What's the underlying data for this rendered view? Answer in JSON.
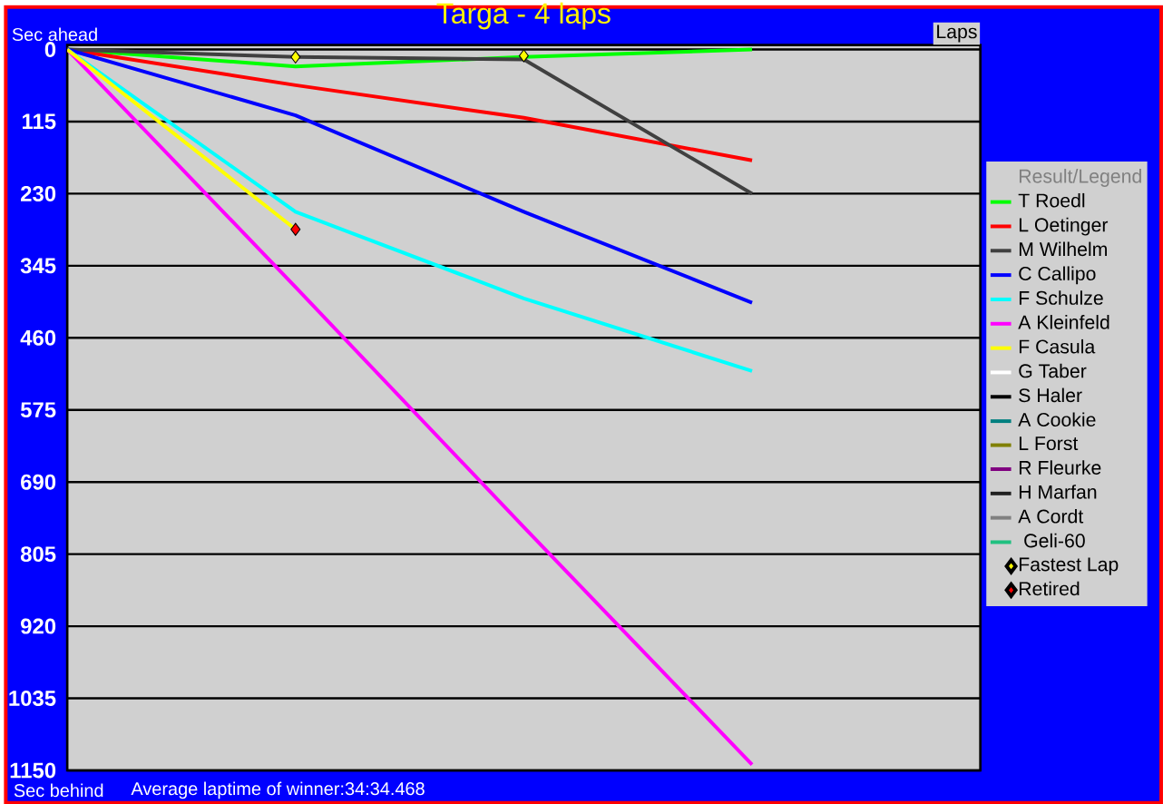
{
  "chart_data": {
    "type": "line",
    "title": "Targa - 4 laps",
    "xlabel": "Laps",
    "legend_title": "Result/Legend",
    "annotations": [
      "Sec ahead",
      "Sec behind",
      "Average laptime of winner:34:34.468"
    ],
    "categories": [
      null,
      null,
      null,
      null,
      null
    ],
    "ylim": [
      1150,
      -7
    ],
    "yticks": [
      0,
      115,
      230,
      345,
      460,
      575,
      690,
      805,
      920,
      1035,
      1150
    ],
    "tick_labels": "y",
    "grid": "y",
    "legend": "right",
    "series": [
      {
        "name": "T Roedl",
        "color": "#00ff00",
        "values": [
          0,
          27,
          12,
          0,
          null
        ]
      },
      {
        "name": "L Oetinger",
        "color": "#ff0000",
        "values": [
          0,
          57,
          109,
          177,
          null
        ]
      },
      {
        "name": "M Wilhelm",
        "color": "#404040",
        "values": [
          0,
          12,
          16,
          230,
          null
        ]
      },
      {
        "name": "C Callipo",
        "color": "#0000ff",
        "values": [
          0,
          105,
          259,
          404,
          null
        ]
      },
      {
        "name": "F Schulze",
        "color": "#00ffff",
        "values": [
          0,
          259,
          397,
          513,
          null
        ]
      },
      {
        "name": "A Kleinfeld",
        "color": "#ff00ff",
        "values": [
          0,
          379,
          762,
          1141,
          null
        ]
      },
      {
        "name": "F Casula",
        "color": "#ffff00",
        "values": [
          0,
          287,
          null,
          null,
          null
        ]
      },
      {
        "name": "G Taber",
        "color": "#ffffff",
        "values": [
          null,
          null,
          null,
          null,
          null
        ]
      },
      {
        "name": "S Haler",
        "color": "#000000",
        "values": [
          null,
          null,
          null,
          null,
          null
        ]
      },
      {
        "name": "A Cookie",
        "color": "#008080",
        "values": [
          null,
          null,
          null,
          null,
          null
        ]
      },
      {
        "name": "L Forst",
        "color": "#808000",
        "values": [
          null,
          null,
          null,
          null,
          null
        ]
      },
      {
        "name": "R Fleurke",
        "color": "#800080",
        "values": [
          null,
          null,
          null,
          null,
          null
        ]
      },
      {
        "name": "H Marfan",
        "color": "#202020",
        "values": [
          null,
          null,
          null,
          null,
          null
        ]
      },
      {
        "name": "A Cordt",
        "color": "#808080",
        "values": [
          null,
          null,
          null,
          null,
          null
        ]
      },
      {
        "name": "  Geli-60",
        "color": "#20c080",
        "values": [
          null,
          null,
          null,
          null,
          null
        ]
      },
      {
        "name": "Fastest Lap",
        "type": "scatter",
        "marker": "diamond",
        "color": "#ffff00",
        "values": [
          null,
          12,
          10,
          null,
          null
        ]
      },
      {
        "name": "Retired",
        "type": "scatter",
        "marker": "diamond",
        "color": "#ff0000",
        "values": [
          null,
          287,
          null,
          null,
          null
        ]
      }
    ]
  }
}
